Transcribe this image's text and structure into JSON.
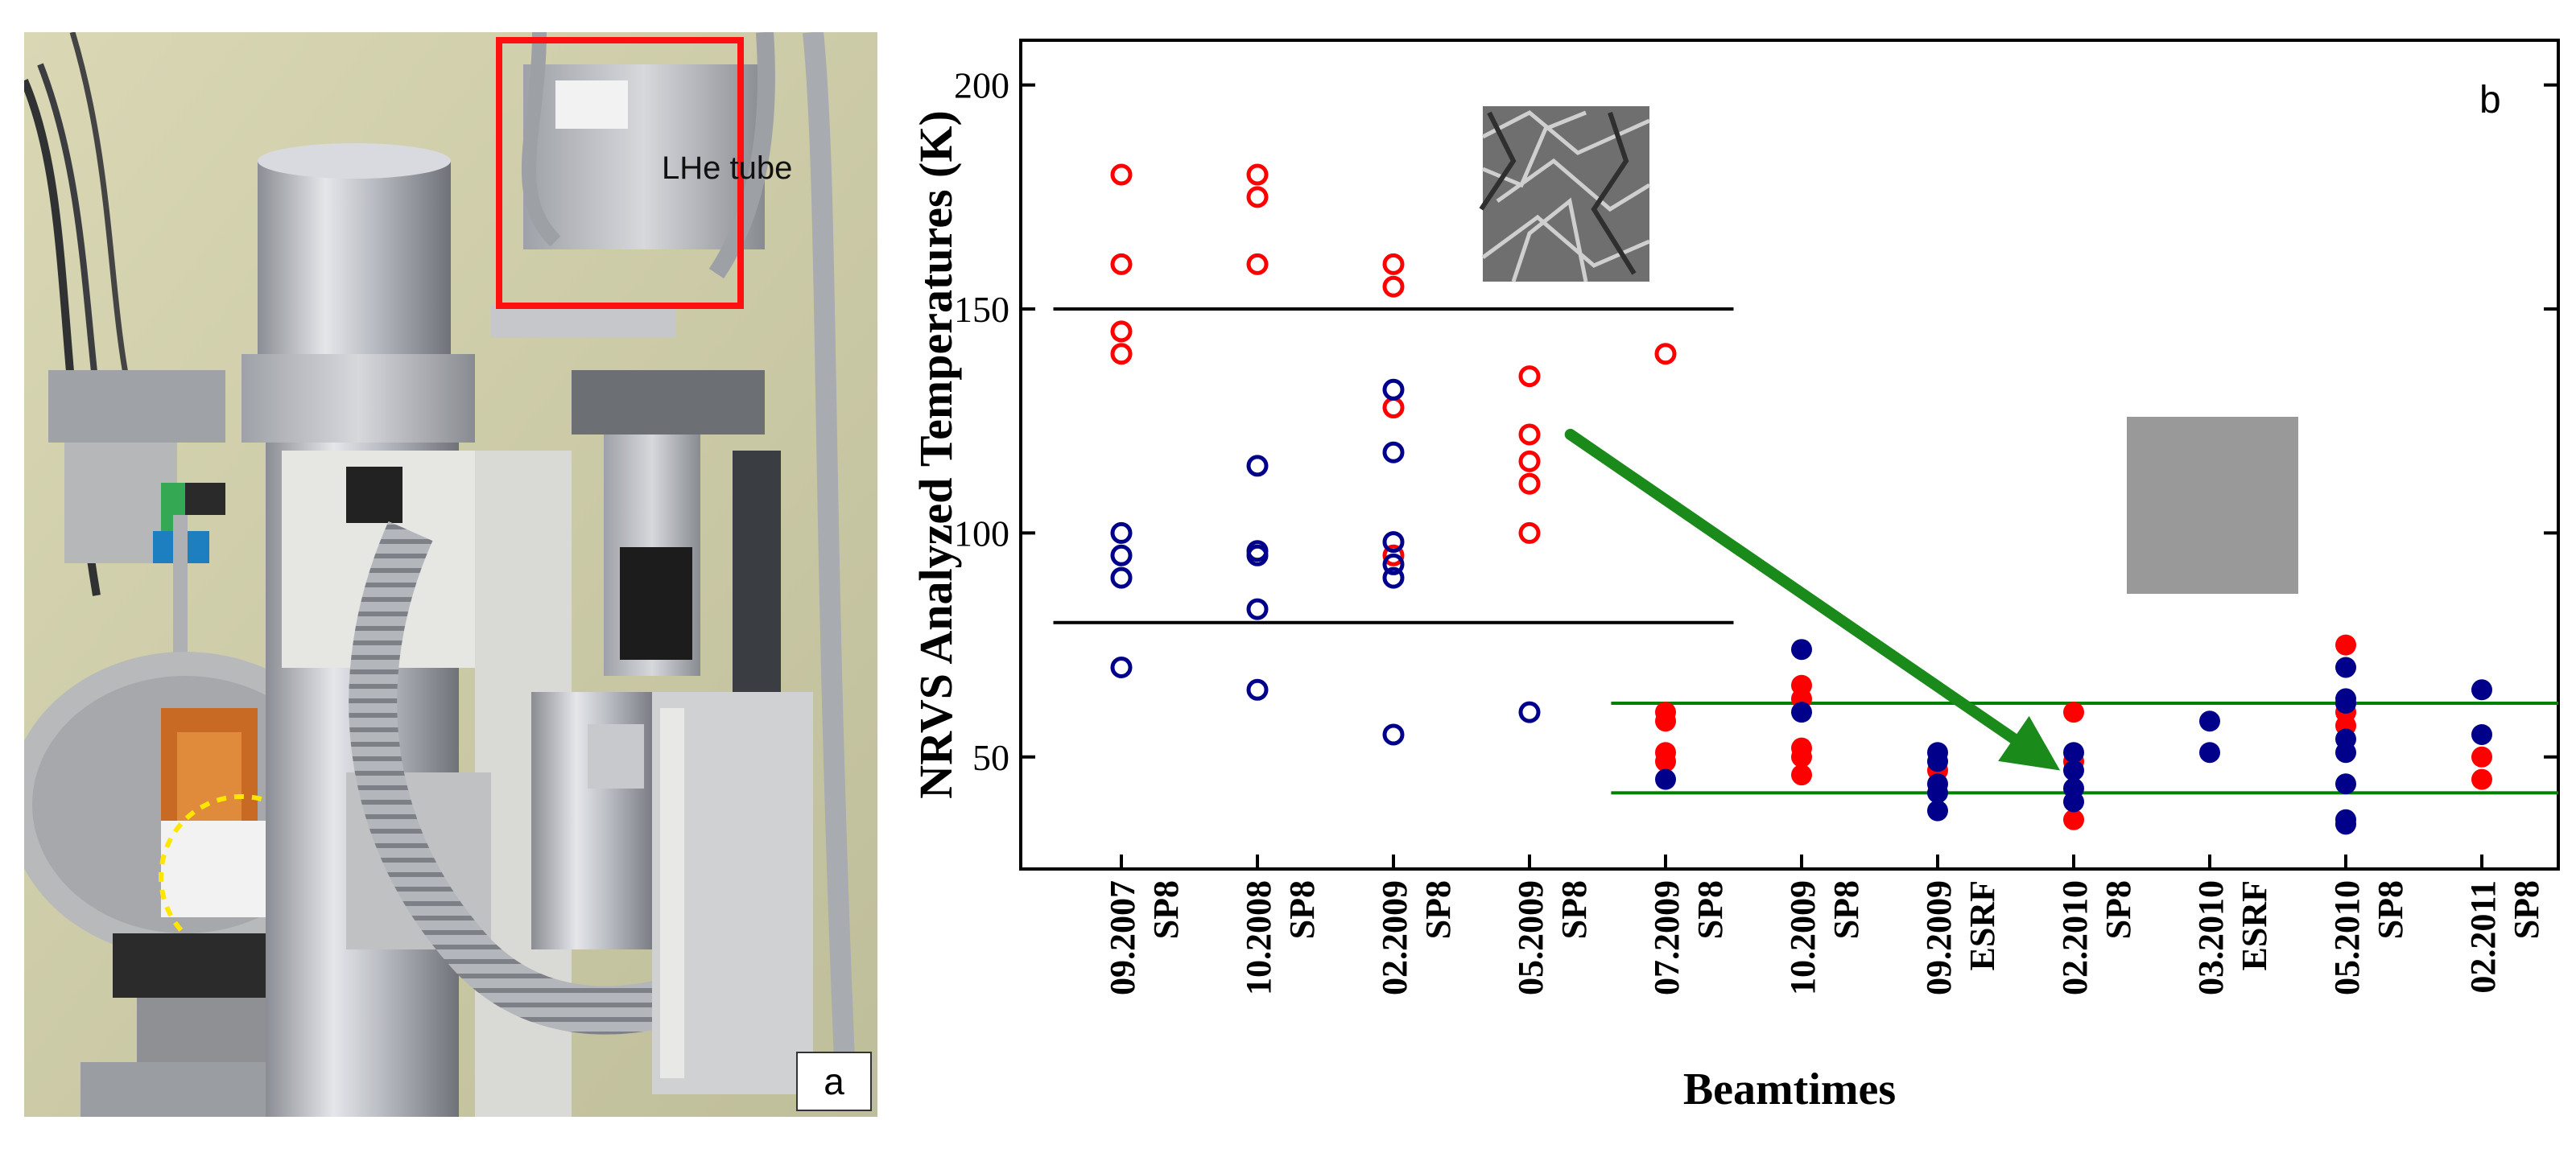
{
  "panel_a": {
    "label": "a",
    "annotation": "LHe tube"
  },
  "chart_data": {
    "type": "scatter",
    "panel_label": "b",
    "ylabel": "NRVS Analyzed Temperatures (K)",
    "xlabel": "Beamtimes",
    "ylim": [
      25,
      210
    ],
    "yticks": [
      50,
      100,
      150,
      200
    ],
    "categories": [
      {
        "date": "09.2007",
        "source": "SP8"
      },
      {
        "date": "10.2008",
        "source": "SP8"
      },
      {
        "date": "02.2009",
        "source": "SP8"
      },
      {
        "date": "05.2009",
        "source": "SP8"
      },
      {
        "date": "07.2009",
        "source": "SP8"
      },
      {
        "date": "10.2009",
        "source": "SP8"
      },
      {
        "date": "09.2009",
        "source": "ESRF"
      },
      {
        "date": "02.2010",
        "source": "SP8"
      },
      {
        "date": "03.2010",
        "source": "ESRF"
      },
      {
        "date": "05.2010",
        "source": "SP8"
      },
      {
        "date": "02.2011",
        "source": "SP8"
      }
    ],
    "reference_lines": [
      {
        "y": 150,
        "x_range": [
          -0.5,
          4.5
        ],
        "color": "#000000"
      },
      {
        "y": 80,
        "x_range": [
          -0.5,
          4.5
        ],
        "color": "#000000"
      },
      {
        "y": 62,
        "x_range": [
          3.6,
          11.5
        ],
        "color": "#008000"
      },
      {
        "y": 42,
        "x_range": [
          3.6,
          11.5
        ],
        "color": "#008000"
      }
    ],
    "arrow": {
      "from": [
        3.3,
        122
      ],
      "to": [
        6.9,
        47
      ],
      "color": "#1a8a1a"
    },
    "series": [
      {
        "name": "open red",
        "color": "#ff0000",
        "filled": false,
        "points": [
          [
            0,
            180
          ],
          [
            0,
            160
          ],
          [
            0,
            145
          ],
          [
            0,
            140
          ],
          [
            1,
            180
          ],
          [
            1,
            175
          ],
          [
            1,
            160
          ],
          [
            2,
            160
          ],
          [
            2,
            155
          ],
          [
            2,
            128
          ],
          [
            2,
            95
          ],
          [
            3,
            135
          ],
          [
            3,
            122
          ],
          [
            3,
            116
          ],
          [
            3,
            111
          ],
          [
            3,
            100
          ],
          [
            4,
            140
          ]
        ]
      },
      {
        "name": "open blue",
        "color": "#00008b",
        "filled": false,
        "points": [
          [
            0,
            100
          ],
          [
            0,
            95
          ],
          [
            0,
            90
          ],
          [
            0,
            70
          ],
          [
            1,
            115
          ],
          [
            1,
            96
          ],
          [
            1,
            95
          ],
          [
            1,
            83
          ],
          [
            1,
            65
          ],
          [
            2,
            132
          ],
          [
            2,
            118
          ],
          [
            2,
            98
          ],
          [
            2,
            93
          ],
          [
            2,
            90
          ],
          [
            2,
            55
          ],
          [
            3,
            60
          ]
        ]
      },
      {
        "name": "filled red",
        "color": "#ff0000",
        "filled": true,
        "points": [
          [
            4,
            60
          ],
          [
            4,
            58
          ],
          [
            4,
            51
          ],
          [
            4,
            49
          ],
          [
            5,
            66
          ],
          [
            5,
            63
          ],
          [
            5,
            52
          ],
          [
            5,
            50
          ],
          [
            5,
            46
          ],
          [
            6,
            47
          ],
          [
            7,
            60
          ],
          [
            7,
            49
          ],
          [
            7,
            36
          ],
          [
            9,
            75
          ],
          [
            9,
            60
          ],
          [
            9,
            57
          ],
          [
            10,
            50
          ],
          [
            10,
            45
          ]
        ]
      },
      {
        "name": "filled blue",
        "color": "#00008b",
        "filled": true,
        "points": [
          [
            4,
            45
          ],
          [
            5,
            74
          ],
          [
            5,
            60
          ],
          [
            6,
            51
          ],
          [
            6,
            49
          ],
          [
            6,
            44
          ],
          [
            6,
            42
          ],
          [
            6,
            38
          ],
          [
            7,
            51
          ],
          [
            7,
            47
          ],
          [
            7,
            43
          ],
          [
            7,
            40
          ],
          [
            8,
            58
          ],
          [
            8,
            51
          ],
          [
            9,
            70
          ],
          [
            9,
            63
          ],
          [
            9,
            62
          ],
          [
            9,
            54
          ],
          [
            9,
            51
          ],
          [
            9,
            44
          ],
          [
            9,
            36
          ],
          [
            9,
            35
          ],
          [
            10,
            65
          ],
          [
            10,
            55
          ]
        ]
      }
    ]
  }
}
